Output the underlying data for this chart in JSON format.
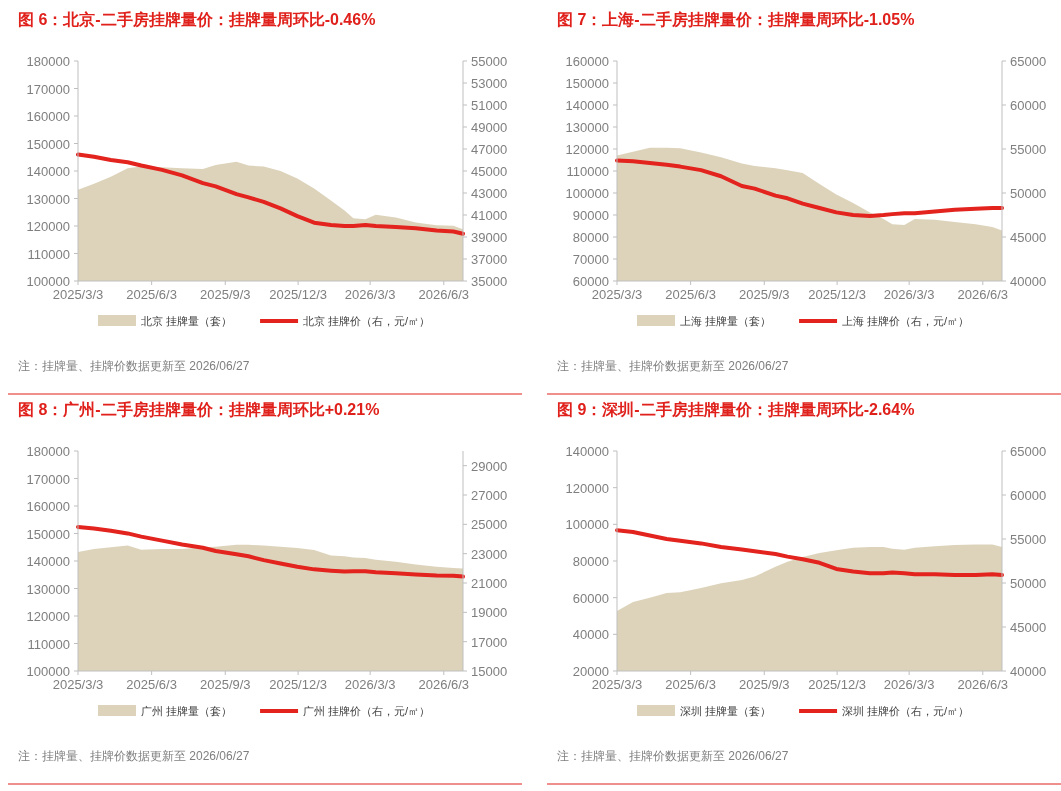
{
  "chart_data": [
    {
      "type": "line",
      "title": "图 6：北京-二手房挂牌量价：挂牌量周环比-0.46%",
      "legend": "bottom",
      "x": [
        "2025-03-03",
        "2025-03-23",
        "2025-04-13",
        "2025-05-04",
        "2025-05-21",
        "2025-06-16",
        "2025-07-11",
        "2025-08-06",
        "2025-08-22",
        "2025-09-17",
        "2025-10-02",
        "2025-10-21",
        "2025-11-11",
        "2025-12-02",
        "2025-12-23",
        "2026-01-13",
        "2026-01-30",
        "2026-02-10",
        "2026-02-25",
        "2026-03-10",
        "2026-04-04",
        "2026-04-29",
        "2026-05-25",
        "2026-06-15",
        "2026-06-27"
      ],
      "xlim": [
        "2025-03-03",
        "2026-06-27"
      ],
      "xticks": [
        {
          "value": "2025-03-03",
          "label": "2025/3/3"
        },
        {
          "value": "2025-06-03",
          "label": "2025/6/3"
        },
        {
          "value": "2025-09-03",
          "label": "2025/9/3"
        },
        {
          "value": "2025-12-03",
          "label": "2025/12/3"
        },
        {
          "value": "2026-03-03",
          "label": "2026/3/3"
        },
        {
          "value": "2026-06-03",
          "label": "2026/6/3"
        }
      ],
      "ylim": [
        100000,
        180000
      ],
      "yticks": [
        100000,
        110000,
        120000,
        130000,
        140000,
        150000,
        160000,
        170000,
        180000
      ],
      "y2lim": [
        35000,
        55000
      ],
      "y2ticks": [
        35000,
        37000,
        39000,
        41000,
        43000,
        45000,
        47000,
        49000,
        51000,
        53000,
        55000
      ],
      "series": [
        {
          "name": "北京 挂牌量（套）",
          "type": "area",
          "color": "#ddd3bb",
          "values": [
            133200,
            135400,
            137900,
            141000,
            141600,
            141400,
            141000,
            140700,
            142200,
            143400,
            142000,
            141600,
            140000,
            137300,
            133600,
            129300,
            125600,
            122800,
            122500,
            124100,
            123100,
            121300,
            120300,
            120100,
            118800
          ]
        },
        {
          "name": "北京 挂牌价（右，元/㎡）",
          "type": "line",
          "axis": "y2",
          "color": "#e3231d",
          "values": [
            46500,
            46300,
            46000,
            45800,
            45500,
            45100,
            44600,
            43900,
            43600,
            42900,
            42600,
            42200,
            41600,
            40900,
            40300,
            40100,
            40000,
            40000,
            40100,
            40000,
            39900,
            39800,
            39600,
            39500,
            39300
          ]
        }
      ],
      "annotations": [
        "注：挂牌量、挂牌价数据更新至 2026/06/27"
      ]
    },
    {
      "type": "line",
      "title": "图 7：上海-二手房挂牌量价：挂牌量周环比-1.05%",
      "legend": "bottom",
      "x": [
        "2025-03-03",
        "2025-03-23",
        "2025-04-13",
        "2025-05-04",
        "2025-05-21",
        "2025-06-16",
        "2025-07-11",
        "2025-08-06",
        "2025-08-22",
        "2025-09-17",
        "2025-10-02",
        "2025-10-21",
        "2025-11-11",
        "2025-12-02",
        "2025-12-23",
        "2026-01-13",
        "2026-01-30",
        "2026-02-10",
        "2026-02-25",
        "2026-03-10",
        "2026-04-04",
        "2026-04-29",
        "2026-05-25",
        "2026-06-15",
        "2026-06-27"
      ],
      "xlim": [
        "2025-03-03",
        "2026-06-27"
      ],
      "xticks": [
        {
          "value": "2025-03-03",
          "label": "2025/3/3"
        },
        {
          "value": "2025-06-03",
          "label": "2025/6/3"
        },
        {
          "value": "2025-09-03",
          "label": "2025/9/3"
        },
        {
          "value": "2025-12-03",
          "label": "2025/12/3"
        },
        {
          "value": "2026-03-03",
          "label": "2026/3/3"
        },
        {
          "value": "2026-06-03",
          "label": "2026/6/3"
        }
      ],
      "ylim": [
        60000,
        160000
      ],
      "yticks": [
        60000,
        70000,
        80000,
        90000,
        100000,
        110000,
        120000,
        130000,
        140000,
        150000,
        160000
      ],
      "y2lim": [
        40000,
        65000
      ],
      "y2ticks": [
        40000,
        45000,
        50000,
        55000,
        60000,
        65000
      ],
      "series": [
        {
          "name": "上海 挂牌量（套）",
          "type": "area",
          "color": "#ddd3bb",
          "values": [
            117000,
            118700,
            120600,
            120600,
            120300,
            118400,
            116300,
            113400,
            112300,
            111300,
            110300,
            109100,
            104100,
            99300,
            95400,
            91100,
            88200,
            85800,
            85400,
            88200,
            87800,
            86800,
            85800,
            84600,
            82900
          ]
        },
        {
          "name": "上海 挂牌价（右，元/㎡）",
          "type": "line",
          "axis": "y2",
          "color": "#e3231d",
          "values": [
            53700,
            53600,
            53400,
            53200,
            53000,
            52600,
            51900,
            50800,
            50500,
            49700,
            49400,
            48800,
            48300,
            47800,
            47500,
            47400,
            47500,
            47600,
            47700,
            47700,
            47900,
            48100,
            48200,
            48300,
            48300
          ]
        }
      ],
      "annotations": [
        "注：挂牌量、挂牌价数据更新至 2026/06/27"
      ]
    },
    {
      "type": "line",
      "title": "图 8：广州-二手房挂牌量价：挂牌量周环比+0.21%",
      "legend": "bottom",
      "x": [
        "2025-03-03",
        "2025-03-23",
        "2025-04-13",
        "2025-05-04",
        "2025-05-21",
        "2025-06-16",
        "2025-07-11",
        "2025-08-06",
        "2025-08-22",
        "2025-09-17",
        "2025-10-02",
        "2025-10-21",
        "2025-11-11",
        "2025-12-02",
        "2025-12-23",
        "2026-01-13",
        "2026-01-30",
        "2026-02-10",
        "2026-02-25",
        "2026-03-10",
        "2026-04-04",
        "2026-04-29",
        "2026-05-25",
        "2026-06-15",
        "2026-06-27"
      ],
      "xlim": [
        "2025-03-03",
        "2026-06-27"
      ],
      "xticks": [
        {
          "value": "2025-03-03",
          "label": "2025/3/3"
        },
        {
          "value": "2025-06-03",
          "label": "2025/6/3"
        },
        {
          "value": "2025-09-03",
          "label": "2025/9/3"
        },
        {
          "value": "2025-12-03",
          "label": "2025/12/3"
        },
        {
          "value": "2026-03-03",
          "label": "2026/3/3"
        },
        {
          "value": "2026-06-03",
          "label": "2026/6/3"
        }
      ],
      "ylim": [
        100000,
        180000
      ],
      "yticks": [
        100000,
        110000,
        120000,
        130000,
        140000,
        150000,
        160000,
        170000,
        180000
      ],
      "y2lim": [
        15000,
        30000
      ],
      "y2ticks": [
        15000,
        17000,
        19000,
        21000,
        23000,
        25000,
        27000,
        29000
      ],
      "series": [
        {
          "name": "广州 挂牌量（套）",
          "type": "area",
          "color": "#ddd3bb",
          "values": [
            143300,
            144400,
            145000,
            145600,
            144100,
            144400,
            144400,
            145000,
            145200,
            145900,
            145900,
            145600,
            145200,
            144700,
            144000,
            142000,
            141700,
            141300,
            141100,
            140500,
            139700,
            138700,
            137900,
            137500,
            137300
          ]
        },
        {
          "name": "广州 挂牌价（右，元/㎡）",
          "type": "line",
          "axis": "y2",
          "color": "#e3231d",
          "values": [
            24820,
            24710,
            24560,
            24380,
            24160,
            23890,
            23620,
            23400,
            23180,
            22960,
            22820,
            22560,
            22330,
            22110,
            21930,
            21840,
            21780,
            21800,
            21800,
            21730,
            21670,
            21580,
            21510,
            21490,
            21440
          ]
        }
      ],
      "annotations": [
        "注：挂牌量、挂牌价数据更新至 2026/06/27"
      ]
    },
    {
      "type": "line",
      "title": "图 9：深圳-二手房挂牌量价：挂牌量周环比-2.64%",
      "legend": "bottom",
      "x": [
        "2025-03-03",
        "2025-03-23",
        "2025-04-13",
        "2025-05-04",
        "2025-05-21",
        "2025-06-16",
        "2025-07-11",
        "2025-08-06",
        "2025-08-22",
        "2025-09-17",
        "2025-10-02",
        "2025-10-21",
        "2025-11-11",
        "2025-12-02",
        "2025-12-23",
        "2026-01-13",
        "2026-01-30",
        "2026-02-10",
        "2026-02-25",
        "2026-03-10",
        "2026-04-04",
        "2026-04-29",
        "2026-05-25",
        "2026-06-15",
        "2026-06-27"
      ],
      "xlim": [
        "2025-03-03",
        "2026-06-27"
      ],
      "xticks": [
        {
          "value": "2025-03-03",
          "label": "2025/3/3"
        },
        {
          "value": "2025-06-03",
          "label": "2025/6/3"
        },
        {
          "value": "2025-09-03",
          "label": "2025/9/3"
        },
        {
          "value": "2025-12-03",
          "label": "2025/12/3"
        },
        {
          "value": "2026-03-03",
          "label": "2026/3/3"
        },
        {
          "value": "2026-06-03",
          "label": "2026/6/3"
        }
      ],
      "ylim": [
        20000,
        140000
      ],
      "yticks": [
        20000,
        40000,
        60000,
        80000,
        100000,
        120000,
        140000
      ],
      "y2lim": [
        40000,
        65000
      ],
      "y2ticks": [
        40000,
        45000,
        50000,
        55000,
        60000,
        65000
      ],
      "series": [
        {
          "name": "深圳 挂牌量（套）",
          "type": "area",
          "color": "#ddd3bb",
          "values": [
            52700,
            57600,
            59900,
            62600,
            63000,
            65300,
            67900,
            69700,
            71500,
            76900,
            79600,
            82200,
            84400,
            85800,
            87200,
            87600,
            87600,
            86700,
            86200,
            87200,
            88100,
            88700,
            89000,
            89000,
            87600
          ]
        },
        {
          "name": "深圳 挂牌价（右，元/㎡）",
          "type": "line",
          "axis": "y2",
          "color": "#e3231d",
          "values": [
            56000,
            55800,
            55400,
            55000,
            54800,
            54500,
            54100,
            53800,
            53600,
            53300,
            53000,
            52700,
            52300,
            51600,
            51300,
            51100,
            51100,
            51200,
            51100,
            51000,
            51000,
            50900,
            50900,
            51000,
            50900
          ]
        }
      ],
      "annotations": [
        "注：挂牌量、挂牌价数据更新至 2026/06/27"
      ]
    }
  ]
}
